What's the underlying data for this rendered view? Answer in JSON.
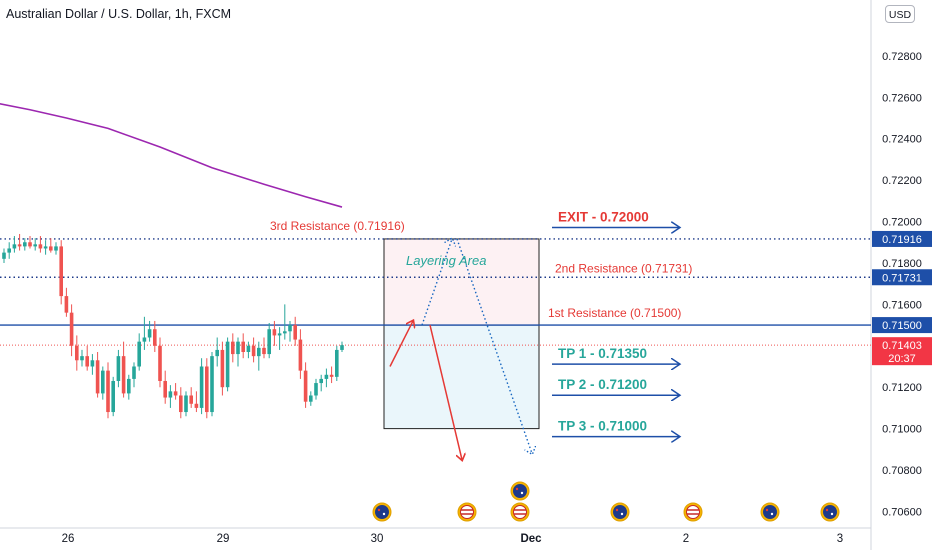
{
  "header": {
    "title": "Australian Dollar / U.S. Dollar, 1h, FXCM",
    "currency_button": "USD"
  },
  "colors": {
    "candle_up": "#26a69a",
    "candle_down": "#ef5350",
    "ma_line": "#9c27b0",
    "resistance_dotted": "#1e3a8a",
    "first_resistance_solid": "#1e4fa8",
    "price_line": "#ef5350",
    "label_red": "#e53935",
    "label_teal": "#26a69a",
    "arrow_blue": "#1e4fa8"
  },
  "chart_data": {
    "type": "candlestick",
    "symbol": "AUDUSD",
    "timeframe": "1h",
    "y_axis": {
      "min": 0.7052,
      "max": 0.7307,
      "ticks": [
        "0.72800",
        "0.72600",
        "0.72400",
        "0.72200",
        "0.72000",
        "0.71800",
        "0.71600",
        "0.71200",
        "0.71000",
        "0.70800",
        "0.70600"
      ]
    },
    "x_axis": {
      "ticks": [
        "26",
        "29",
        "30",
        "Dec",
        "2",
        "3"
      ]
    },
    "candles": [
      {
        "o": 0.7182,
        "h": 0.7187,
        "l": 0.718,
        "c": 0.7185
      },
      {
        "o": 0.7185,
        "h": 0.719,
        "l": 0.7182,
        "c": 0.7187
      },
      {
        "o": 0.7187,
        "h": 0.7193,
        "l": 0.7185,
        "c": 0.7189
      },
      {
        "o": 0.7189,
        "h": 0.7194,
        "l": 0.7186,
        "c": 0.7188
      },
      {
        "o": 0.7188,
        "h": 0.7192,
        "l": 0.7186,
        "c": 0.719
      },
      {
        "o": 0.719,
        "h": 0.7193,
        "l": 0.7187,
        "c": 0.7188
      },
      {
        "o": 0.7188,
        "h": 0.7192,
        "l": 0.7186,
        "c": 0.7189
      },
      {
        "o": 0.7189,
        "h": 0.7193,
        "l": 0.7185,
        "c": 0.7187
      },
      {
        "o": 0.7187,
        "h": 0.7191,
        "l": 0.7184,
        "c": 0.7188
      },
      {
        "o": 0.7188,
        "h": 0.7192,
        "l": 0.7185,
        "c": 0.7186
      },
      {
        "o": 0.7186,
        "h": 0.719,
        "l": 0.7184,
        "c": 0.7188
      },
      {
        "o": 0.7188,
        "h": 0.7191,
        "l": 0.716,
        "c": 0.7164
      },
      {
        "o": 0.7164,
        "h": 0.7168,
        "l": 0.7154,
        "c": 0.7156
      },
      {
        "o": 0.7156,
        "h": 0.716,
        "l": 0.7135,
        "c": 0.714
      },
      {
        "o": 0.714,
        "h": 0.7145,
        "l": 0.7128,
        "c": 0.7133
      },
      {
        "o": 0.7133,
        "h": 0.7138,
        "l": 0.713,
        "c": 0.7135
      },
      {
        "o": 0.7135,
        "h": 0.714,
        "l": 0.7128,
        "c": 0.713
      },
      {
        "o": 0.713,
        "h": 0.7136,
        "l": 0.7126,
        "c": 0.7133
      },
      {
        "o": 0.7133,
        "h": 0.7137,
        "l": 0.7115,
        "c": 0.7117
      },
      {
        "o": 0.7117,
        "h": 0.713,
        "l": 0.7114,
        "c": 0.7128
      },
      {
        "o": 0.7128,
        "h": 0.7132,
        "l": 0.7105,
        "c": 0.7108
      },
      {
        "o": 0.7108,
        "h": 0.7125,
        "l": 0.7106,
        "c": 0.7123
      },
      {
        "o": 0.7123,
        "h": 0.7138,
        "l": 0.712,
        "c": 0.7135
      },
      {
        "o": 0.7135,
        "h": 0.7142,
        "l": 0.7115,
        "c": 0.7117
      },
      {
        "o": 0.7117,
        "h": 0.7126,
        "l": 0.7114,
        "c": 0.7124
      },
      {
        "o": 0.7124,
        "h": 0.7132,
        "l": 0.712,
        "c": 0.713
      },
      {
        "o": 0.713,
        "h": 0.7146,
        "l": 0.7128,
        "c": 0.7142
      },
      {
        "o": 0.7142,
        "h": 0.7154,
        "l": 0.7138,
        "c": 0.7144
      },
      {
        "o": 0.7144,
        "h": 0.7152,
        "l": 0.7142,
        "c": 0.7148
      },
      {
        "o": 0.7148,
        "h": 0.7152,
        "l": 0.7137,
        "c": 0.714
      },
      {
        "o": 0.714,
        "h": 0.7144,
        "l": 0.712,
        "c": 0.7123
      },
      {
        "o": 0.7123,
        "h": 0.7128,
        "l": 0.7112,
        "c": 0.7115
      },
      {
        "o": 0.7115,
        "h": 0.7121,
        "l": 0.711,
        "c": 0.7118
      },
      {
        "o": 0.7118,
        "h": 0.7122,
        "l": 0.7114,
        "c": 0.7116
      },
      {
        "o": 0.7116,
        "h": 0.712,
        "l": 0.7105,
        "c": 0.7108
      },
      {
        "o": 0.7108,
        "h": 0.7118,
        "l": 0.7106,
        "c": 0.7116
      },
      {
        "o": 0.7116,
        "h": 0.712,
        "l": 0.711,
        "c": 0.7112
      },
      {
        "o": 0.7112,
        "h": 0.7118,
        "l": 0.7108,
        "c": 0.711
      },
      {
        "o": 0.711,
        "h": 0.7134,
        "l": 0.7107,
        "c": 0.713
      },
      {
        "o": 0.713,
        "h": 0.7134,
        "l": 0.7105,
        "c": 0.7108
      },
      {
        "o": 0.7108,
        "h": 0.7137,
        "l": 0.7106,
        "c": 0.7135
      },
      {
        "o": 0.7135,
        "h": 0.7144,
        "l": 0.713,
        "c": 0.7138
      },
      {
        "o": 0.7138,
        "h": 0.7142,
        "l": 0.7116,
        "c": 0.712
      },
      {
        "o": 0.712,
        "h": 0.7144,
        "l": 0.7118,
        "c": 0.7142
      },
      {
        "o": 0.7142,
        "h": 0.7146,
        "l": 0.7132,
        "c": 0.7136
      },
      {
        "o": 0.7136,
        "h": 0.7144,
        "l": 0.713,
        "c": 0.7142
      },
      {
        "o": 0.7142,
        "h": 0.7146,
        "l": 0.7134,
        "c": 0.7137
      },
      {
        "o": 0.7137,
        "h": 0.7142,
        "l": 0.7134,
        "c": 0.714
      },
      {
        "o": 0.714,
        "h": 0.7144,
        "l": 0.7132,
        "c": 0.7135
      },
      {
        "o": 0.7135,
        "h": 0.7142,
        "l": 0.7128,
        "c": 0.7139
      },
      {
        "o": 0.7139,
        "h": 0.7144,
        "l": 0.7134,
        "c": 0.7136
      },
      {
        "o": 0.7136,
        "h": 0.7151,
        "l": 0.7134,
        "c": 0.7148
      },
      {
        "o": 0.7148,
        "h": 0.7152,
        "l": 0.714,
        "c": 0.7145
      },
      {
        "o": 0.7145,
        "h": 0.7149,
        "l": 0.7138,
        "c": 0.7146
      },
      {
        "o": 0.7146,
        "h": 0.716,
        "l": 0.7143,
        "c": 0.7147
      },
      {
        "o": 0.7147,
        "h": 0.7152,
        "l": 0.7142,
        "c": 0.715
      },
      {
        "o": 0.715,
        "h": 0.7154,
        "l": 0.714,
        "c": 0.7143
      },
      {
        "o": 0.7143,
        "h": 0.7148,
        "l": 0.7124,
        "c": 0.7128
      },
      {
        "o": 0.7128,
        "h": 0.7132,
        "l": 0.711,
        "c": 0.7113
      },
      {
        "o": 0.7113,
        "h": 0.7118,
        "l": 0.7111,
        "c": 0.7116
      },
      {
        "o": 0.7116,
        "h": 0.7124,
        "l": 0.7114,
        "c": 0.7122
      },
      {
        "o": 0.7122,
        "h": 0.7126,
        "l": 0.7118,
        "c": 0.7124
      },
      {
        "o": 0.7124,
        "h": 0.7129,
        "l": 0.712,
        "c": 0.7126
      },
      {
        "o": 0.7126,
        "h": 0.713,
        "l": 0.7122,
        "c": 0.7125
      },
      {
        "o": 0.7125,
        "h": 0.714,
        "l": 0.7123,
        "c": 0.7138
      },
      {
        "o": 0.7138,
        "h": 0.7142,
        "l": 0.7137,
        "c": 0.71403
      }
    ],
    "moving_average": [
      {
        "index": -1,
        "value": 0.7257
      },
      {
        "index": 5,
        "value": 0.7254
      },
      {
        "index": 12,
        "value": 0.725
      },
      {
        "index": 20,
        "value": 0.7245
      },
      {
        "index": 30,
        "value": 0.7236
      },
      {
        "index": 40,
        "value": 0.7226
      },
      {
        "index": 50,
        "value": 0.7218
      },
      {
        "index": 58,
        "value": 0.7212
      },
      {
        "index": 65,
        "value": 0.7207
      }
    ],
    "horizontal_levels": [
      {
        "value": 0.71916,
        "label": "0.71916",
        "style": "dotted"
      },
      {
        "value": 0.71731,
        "label": "0.71731",
        "style": "dotted"
      },
      {
        "value": 0.715,
        "label": "0.71500",
        "style": "solid"
      }
    ],
    "current_price": {
      "value": 0.71403,
      "label": "0.71403",
      "countdown": "20:37"
    },
    "annotations": {
      "resistance_labels": [
        {
          "text": "3rd Resistance (0.71916)"
        },
        {
          "text": "2nd Resistance (0.71731)"
        },
        {
          "text": "1st Resistance (0.71500)"
        }
      ],
      "layering_area": {
        "text": "Layering Area",
        "top": 0.71916,
        "bottom": 0.71
      },
      "targets": [
        {
          "text": "EXIT - 0.72000",
          "value": 0.72,
          "color": "red"
        },
        {
          "text": "TP 1 - 0.71350",
          "value": 0.7135,
          "color": "teal"
        },
        {
          "text": "TP 2 - 0.71200",
          "value": 0.712,
          "color": "teal"
        },
        {
          "text": "TP 3 - 0.71000",
          "value": 0.71,
          "color": "teal"
        }
      ]
    },
    "events": [
      {
        "label": "AU"
      },
      {
        "label": "US"
      },
      {
        "label": "AU"
      },
      {
        "label": "US"
      },
      {
        "label": "AU"
      },
      {
        "label": "US"
      },
      {
        "label": "AU"
      }
    ]
  }
}
